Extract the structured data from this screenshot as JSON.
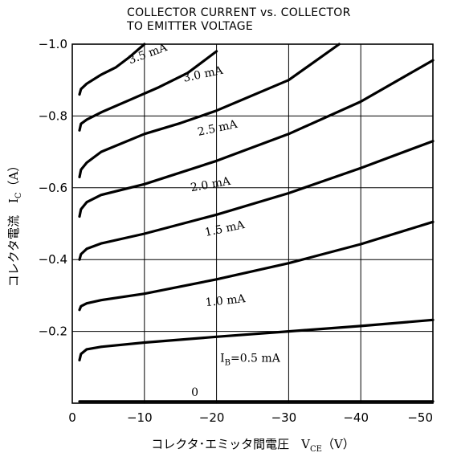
{
  "chart_data": {
    "type": "line",
    "title_lines": [
      "COLLECTOR CURRENT vs. COLLECTOR",
      "TO EMITTER VOLTAGE"
    ],
    "xlabel": "コレクタ･エミッタ間電圧　V",
    "xlabel_sub": "CE",
    "xlabel_unit": "（V）",
    "ylabel": "コレクタ電流　I",
    "ylabel_sub": "C",
    "ylabel_unit": "（A）",
    "xlim": [
      0,
      -50
    ],
    "ylim": [
      0,
      -1.0
    ],
    "x_ticks": [
      {
        "value": 0,
        "label": "0"
      },
      {
        "value": -10,
        "label": "−10"
      },
      {
        "value": -20,
        "label": "−20"
      },
      {
        "value": -30,
        "label": "−30"
      },
      {
        "value": -40,
        "label": "−40"
      },
      {
        "value": -50,
        "label": "−50"
      }
    ],
    "y_ticks": [
      {
        "value": -0.2,
        "label": "−0.2"
      },
      {
        "value": -0.4,
        "label": "−0.4"
      },
      {
        "value": -0.6,
        "label": "−0.6"
      },
      {
        "value": -0.8,
        "label": "−0.8"
      },
      {
        "value": -1.0,
        "label": "−1.0"
      }
    ],
    "grid": true,
    "series": [
      {
        "name": "0",
        "label": "0",
        "label_at": [
          -16.5,
          -0.02
        ],
        "label_angle": 0,
        "x": [
          -1,
          -50
        ],
        "y": [
          -0.005,
          -0.005
        ]
      },
      {
        "name": "I_B=0.5 mA",
        "label": "I=0.5 mA",
        "label_prefix": "I",
        "label_sub": "B",
        "label_rest": "=0.5 mA",
        "label_at": [
          -20.5,
          -0.115
        ],
        "label_angle": 0,
        "x": [
          -1,
          -1.2,
          -2,
          -4,
          -10,
          -20,
          -30,
          -40,
          -50
        ],
        "y": [
          -0.12,
          -0.137,
          -0.15,
          -0.157,
          -0.169,
          -0.185,
          -0.2,
          -0.215,
          -0.232
        ]
      },
      {
        "name": "1.0 mA",
        "label": "1.0 mA",
        "label_at": [
          -18.5,
          -0.27
        ],
        "label_angle": -6,
        "x": [
          -1,
          -1.2,
          -2,
          -4,
          -10,
          -20,
          -30,
          -40,
          -50
        ],
        "y": [
          -0.26,
          -0.27,
          -0.278,
          -0.287,
          -0.305,
          -0.345,
          -0.39,
          -0.443,
          -0.505
        ]
      },
      {
        "name": "1.5 mA",
        "label": "1.5 mA",
        "label_at": [
          -18.5,
          -0.465
        ],
        "label_angle": -12,
        "x": [
          -1,
          -1.2,
          -2,
          -4,
          -10,
          -20,
          -30,
          -40,
          -50
        ],
        "y": [
          -0.4,
          -0.415,
          -0.43,
          -0.445,
          -0.472,
          -0.525,
          -0.585,
          -0.655,
          -0.73
        ]
      },
      {
        "name": "2.0 mA",
        "label": "2.0 mA",
        "label_at": [
          -16.5,
          -0.59
        ],
        "label_angle": -10,
        "x": [
          -1,
          -1.2,
          -2,
          -4,
          -10,
          -20,
          -30,
          -40,
          -50
        ],
        "y": [
          -0.52,
          -0.54,
          -0.56,
          -0.58,
          -0.61,
          -0.675,
          -0.75,
          -0.84,
          -0.955
        ]
      },
      {
        "name": "2.5 mA",
        "label": "2.5 mA",
        "label_at": [
          -17.5,
          -0.745
        ],
        "label_angle": -12,
        "x": [
          -1,
          -1.2,
          -2,
          -4,
          -10,
          -15,
          -20,
          -30,
          -37
        ],
        "y": [
          -0.63,
          -0.65,
          -0.67,
          -0.7,
          -0.75,
          -0.78,
          -0.815,
          -0.9,
          -1.0
        ]
      },
      {
        "name": "3.0 mA",
        "label": "3.0 mA",
        "label_at": [
          -15.5,
          -0.895
        ],
        "label_angle": -12,
        "x": [
          -1,
          -1.2,
          -2,
          -4,
          -8,
          -12,
          -16,
          -20
        ],
        "y": [
          -0.76,
          -0.778,
          -0.79,
          -0.81,
          -0.845,
          -0.88,
          -0.92,
          -0.98
        ]
      },
      {
        "name": "3.5 mA",
        "label": "3.5 mA",
        "label_at": [
          -8.0,
          -0.945
        ],
        "label_angle": -20,
        "x": [
          -1,
          -1.2,
          -2,
          -4,
          -6,
          -8,
          -10
        ],
        "y": [
          -0.86,
          -0.875,
          -0.89,
          -0.915,
          -0.935,
          -0.965,
          -1.0
        ]
      }
    ]
  }
}
